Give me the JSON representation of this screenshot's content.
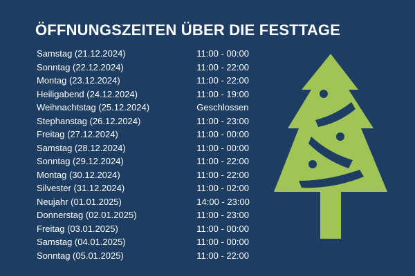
{
  "title": "ÖFFNUNGSZEITEN ÜBER DIE FESTTAGE",
  "colors": {
    "background": "#1e3d62",
    "text": "#ffffff",
    "tree": "#a0c455"
  },
  "icon": "christmas-tree-icon",
  "schedule": [
    {
      "day": "Samstag (21.12.2024)",
      "hours": "11:00 - 00:00"
    },
    {
      "day": "Sonntag (22.12.2024)",
      "hours": "11:00 - 22:00"
    },
    {
      "day": "Montag (23.12.2024)",
      "hours": "11:00 - 22:00"
    },
    {
      "day": "Heiligabend (24.12.2024)",
      "hours": "11:00 - 19:00"
    },
    {
      "day": "Weihnachtstag (25.12.2024)",
      "hours": "Geschlossen"
    },
    {
      "day": "Stephanstag (26.12.2024)",
      "hours": "11:00 - 23:00"
    },
    {
      "day": "Freitag (27.12.2024)",
      "hours": "11:00 - 00:00"
    },
    {
      "day": "Samstag (28.12.2024)",
      "hours": "11:00 - 00:00"
    },
    {
      "day": "Sonntag (29.12.2024)",
      "hours": "11:00 - 22:00"
    },
    {
      "day": "Montag (30.12.2024)",
      "hours": "11:00 - 22:00"
    },
    {
      "day": "Silvester (31.12.2024)",
      "hours": "11:00 - 02:00"
    },
    {
      "day": "Neujahr (01.01.2025)",
      "hours": "14:00 - 23:00"
    },
    {
      "day": "Donnerstag (02.01.2025)",
      "hours": "11:00 - 23:00"
    },
    {
      "day": "Freitag (03.01.2025)",
      "hours": "11:00 - 00:00"
    },
    {
      "day": "Samstag (04.01.2025)",
      "hours": "11:00 - 00:00"
    },
    {
      "day": "Sonntag (05.01.2025)",
      "hours": "11:00 - 22:00"
    }
  ]
}
